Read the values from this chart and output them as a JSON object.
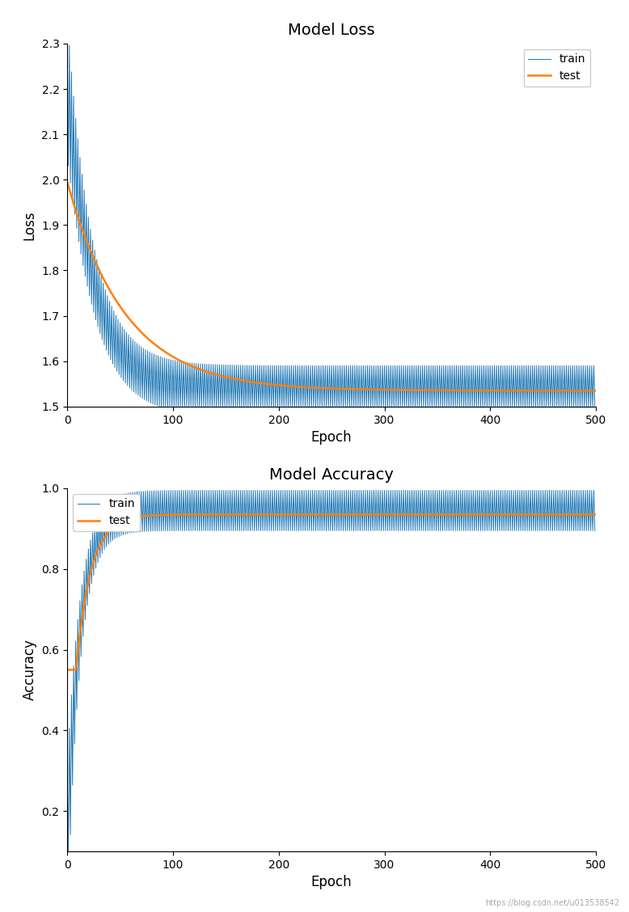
{
  "loss_title": "Model Loss",
  "acc_title": "Model Accuracy",
  "xlabel": "Epoch",
  "loss_ylabel": "Loss",
  "acc_ylabel": "Accuracy",
  "train_color": "#1f77b4",
  "test_color": "#ff7f0e",
  "n_epochs": 500,
  "loss_ylim": [
    1.5,
    2.3
  ],
  "acc_ylim": [
    0.1,
    1.0
  ],
  "loss_yticks": [
    1.5,
    1.6,
    1.7,
    1.8,
    1.9,
    2.0,
    2.1,
    2.2,
    2.3
  ],
  "acc_yticks": [
    0.2,
    0.4,
    0.6,
    0.8,
    1.0
  ],
  "xlim": [
    0,
    500
  ],
  "xticks": [
    0,
    100,
    200,
    300,
    400,
    500
  ],
  "figsize": [
    7.78,
    11.28
  ],
  "dpi": 100,
  "background_color": "#ffffff",
  "legend_labels": [
    "train",
    "test"
  ]
}
